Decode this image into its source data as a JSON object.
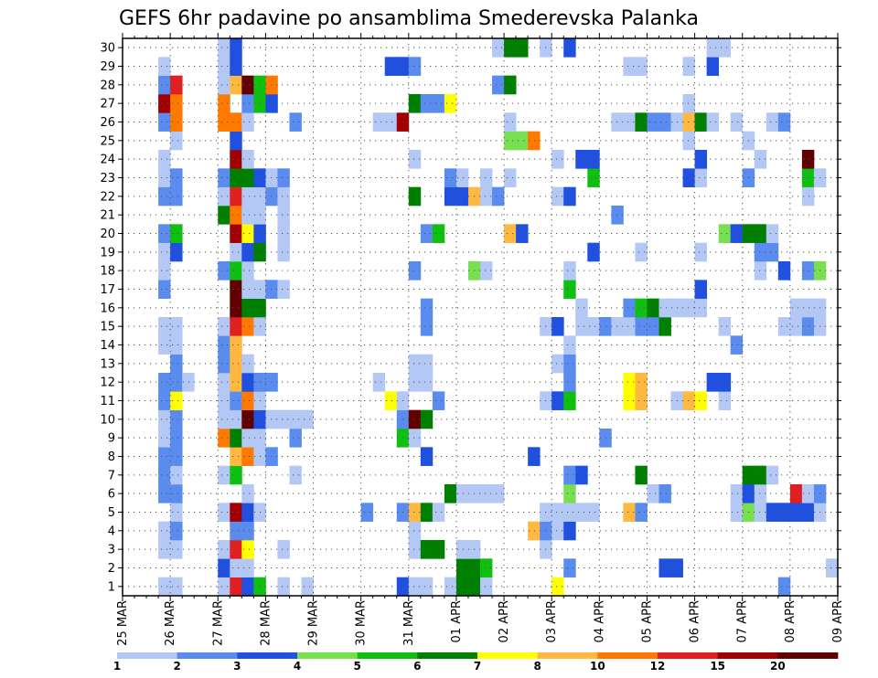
{
  "chart_data": {
    "type": "heatmap",
    "title": "GEFS 6hr padavine po ansamblima Smederevska Palanka",
    "x_axis": {
      "kind": "date",
      "start": "2025-03-25T00:00",
      "end": "2025-04-09T00:00",
      "step_hours": 6,
      "tick_labels": [
        "25 MAR",
        "26 MAR",
        "27 MAR",
        "28 MAR",
        "29 MAR",
        "30 MAR",
        "31 MAR",
        "01 APR",
        "02 APR",
        "03 APR",
        "04 APR",
        "05 APR",
        "06 APR",
        "07 APR",
        "08 APR",
        "09 APR"
      ]
    },
    "y_axis": {
      "label": "",
      "range": [
        1,
        30
      ],
      "tick_labels": [
        "1",
        "2",
        "3",
        "4",
        "5",
        "6",
        "7",
        "8",
        "9",
        "10",
        "11",
        "12",
        "13",
        "14",
        "15",
        "16",
        "17",
        "18",
        "19",
        "20",
        "21",
        "22",
        "23",
        "24",
        "25",
        "26",
        "27",
        "28",
        "29",
        "30"
      ]
    },
    "grid": true,
    "legend": {
      "placement": "bottom",
      "boundaries": [
        1,
        2,
        3,
        4,
        5,
        6,
        7,
        8,
        10,
        12,
        15,
        20
      ],
      "labels": [
        "1",
        "2",
        "3",
        "4",
        "5",
        "6",
        "7",
        "8",
        "10",
        "12",
        "15",
        "20"
      ],
      "colors": [
        "#b4c8f5",
        "#5a8cf0",
        "#2050e0",
        "#78e050",
        "#10c010",
        "#008000",
        "#ffff00",
        "#ffb840",
        "#ff7800",
        "#e02020",
        "#a00000",
        "#600000"
      ]
    },
    "cells": [
      {
        "time": "2025-03-25T18:00",
        "members": [
          1,
          3,
          4,
          6,
          7,
          8,
          9,
          10,
          11,
          12,
          14,
          15,
          17,
          18,
          19,
          20,
          22,
          23,
          24,
          26,
          27,
          28,
          29
        ],
        "classes": [
          0,
          0,
          0,
          1,
          1,
          1,
          0,
          0,
          1,
          1,
          0,
          0,
          1,
          0,
          0,
          1,
          1,
          0,
          0,
          1,
          10,
          1,
          0
        ]
      },
      {
        "time": "2025-03-26T00:00",
        "members": [
          1,
          3,
          4,
          5,
          6,
          7,
          8,
          9,
          10,
          11,
          12,
          13,
          14,
          15,
          19,
          20,
          22,
          23,
          25,
          26,
          27,
          28
        ],
        "classes": [
          0,
          0,
          1,
          0,
          1,
          0,
          1,
          1,
          1,
          6,
          1,
          1,
          0,
          0,
          2,
          4,
          1,
          1,
          0,
          8,
          8,
          9
        ]
      },
      {
        "time": "2025-03-26T06:00",
        "members": [
          12
        ],
        "classes": [
          0
        ]
      },
      {
        "time": "2025-03-27T00:00",
        "members": [
          1,
          2,
          3,
          5,
          7,
          9,
          10,
          11,
          12,
          13,
          14,
          15,
          18,
          21,
          22,
          23,
          26,
          27,
          28,
          29,
          30
        ],
        "classes": [
          0,
          2,
          0,
          0,
          0,
          8,
          0,
          0,
          0,
          1,
          1,
          0,
          1,
          5,
          0,
          1,
          8,
          8,
          0,
          0,
          0
        ]
      },
      {
        "time": "2025-03-27T06:00",
        "members": [
          1,
          2,
          3,
          4,
          5,
          7,
          8,
          9,
          10,
          11,
          12,
          13,
          14,
          15,
          16,
          17,
          18,
          19,
          20,
          21,
          22,
          23,
          24,
          25,
          26,
          28,
          29,
          30
        ],
        "classes": [
          9,
          0,
          9,
          1,
          10,
          4,
          7,
          5,
          0,
          1,
          7,
          7,
          7,
          9,
          11,
          11,
          4,
          0,
          10,
          8,
          9,
          5,
          10,
          2,
          8,
          7,
          2,
          2
        ]
      },
      {
        "time": "2025-03-27T12:00",
        "members": [
          1,
          2,
          3,
          4,
          5,
          6,
          8,
          9,
          10,
          11,
          12,
          13,
          15,
          16,
          17,
          18,
          19,
          20,
          21,
          22,
          23,
          24,
          26,
          27,
          28
        ],
        "classes": [
          2,
          0,
          6,
          1,
          2,
          0,
          8,
          0,
          11,
          8,
          2,
          0,
          8,
          5,
          0,
          0,
          2,
          6,
          0,
          0,
          5,
          0,
          0,
          1,
          11
        ]
      },
      {
        "time": "2025-03-27T18:00",
        "members": [
          1,
          5,
          8,
          9,
          10,
          11,
          12,
          15,
          16,
          17,
          19,
          20,
          21,
          22,
          23,
          27,
          28
        ],
        "classes": [
          4,
          0,
          0,
          0,
          2,
          0,
          1,
          0,
          5,
          0,
          5,
          2,
          0,
          0,
          2,
          4,
          4
        ]
      },
      {
        "time": "2025-03-28T00:00",
        "members": [
          8,
          10,
          12,
          17,
          22,
          23,
          27,
          28
        ],
        "classes": [
          1,
          0,
          1,
          1,
          1,
          0,
          2,
          8
        ]
      },
      {
        "time": "2025-03-28T06:00",
        "members": [
          1,
          3,
          10,
          17,
          19,
          20,
          21,
          22,
          23
        ],
        "classes": [
          0,
          0,
          0,
          0,
          0,
          0,
          0,
          0,
          1
        ]
      },
      {
        "time": "2025-03-28T12:00",
        "members": [
          7,
          9,
          10,
          26
        ],
        "classes": [
          0,
          1,
          0,
          1
        ]
      },
      {
        "time": "2025-03-28T18:00",
        "members": [
          1,
          10
        ],
        "classes": [
          0,
          0
        ]
      },
      {
        "time": "2025-03-30T00:00",
        "members": [
          5
        ],
        "classes": [
          1
        ]
      },
      {
        "time": "2025-03-30T06:00",
        "members": [
          12,
          26
        ],
        "classes": [
          0,
          0
        ]
      },
      {
        "time": "2025-03-30T12:00",
        "members": [
          11,
          26,
          29
        ],
        "classes": [
          6,
          0,
          2
        ]
      },
      {
        "time": "2025-03-30T18:00",
        "members": [
          1,
          5,
          9,
          10,
          11,
          26,
          29
        ],
        "classes": [
          2,
          1,
          4,
          1,
          0,
          10,
          2
        ]
      },
      {
        "time": "2025-03-31T00:00",
        "members": [
          1,
          3,
          4,
          5,
          9,
          10,
          12,
          13,
          18,
          22,
          24,
          27,
          29
        ],
        "classes": [
          0,
          0,
          0,
          7,
          0,
          11,
          0,
          0,
          1,
          5,
          0,
          5,
          1
        ]
      },
      {
        "time": "2025-03-31T06:00",
        "members": [
          1,
          3,
          5,
          8,
          10,
          12,
          13,
          15,
          16,
          20,
          27
        ],
        "classes": [
          0,
          5,
          5,
          2,
          5,
          0,
          0,
          1,
          1,
          1,
          1
        ]
      },
      {
        "time": "2025-03-31T12:00",
        "members": [
          0,
          3,
          5,
          11,
          20,
          27
        ],
        "classes": [
          1,
          5,
          0,
          1,
          4,
          1
        ]
      },
      {
        "time": "2025-03-31T18:00",
        "members": [
          1,
          6,
          22,
          23,
          27
        ],
        "classes": [
          0,
          5,
          2,
          1,
          6
        ]
      },
      {
        "time": "2025-04-01T00:00",
        "members": [
          1,
          2,
          3,
          6,
          22,
          23
        ],
        "classes": [
          5,
          5,
          0,
          0,
          2,
          0
        ]
      },
      {
        "time": "2025-04-01T06:00",
        "members": [
          1,
          2,
          3,
          6,
          18,
          22
        ],
        "classes": [
          5,
          5,
          0,
          0,
          3,
          7
        ]
      },
      {
        "time": "2025-04-01T12:00",
        "members": [
          1,
          2,
          6,
          18,
          22,
          23
        ],
        "classes": [
          0,
          4,
          0,
          0,
          0,
          0
        ]
      },
      {
        "time": "2025-04-01T18:00",
        "members": [
          6,
          22,
          28,
          30
        ],
        "classes": [
          0,
          1,
          1,
          0
        ]
      },
      {
        "time": "2025-04-02T00:00",
        "members": [
          20,
          23,
          25,
          26,
          28,
          30
        ],
        "classes": [
          7,
          0,
          3,
          0,
          5,
          5
        ]
      },
      {
        "time": "2025-04-02T06:00",
        "members": [
          20,
          25,
          30
        ],
        "classes": [
          2,
          3,
          5
        ]
      },
      {
        "time": "2025-04-02T12:00",
        "members": [
          4,
          8,
          25
        ],
        "classes": [
          7,
          2,
          8
        ]
      },
      {
        "time": "2025-04-02T18:00",
        "members": [
          3,
          4,
          5,
          11,
          15,
          30
        ],
        "classes": [
          0,
          1,
          0,
          0,
          0,
          0
        ]
      },
      {
        "time": "2025-04-03T00:00",
        "members": [
          0,
          1,
          4,
          5,
          11,
          13,
          15,
          22,
          24
        ],
        "classes": [
          0,
          6,
          0,
          0,
          2,
          0,
          2,
          0,
          0
        ]
      },
      {
        "time": "2025-04-03T06:00",
        "members": [
          0,
          2,
          4,
          5,
          6,
          7,
          11,
          12,
          13,
          14,
          17,
          18,
          22,
          30
        ],
        "classes": [
          0,
          1,
          2,
          0,
          3,
          1,
          4,
          1,
          1,
          0,
          4,
          0,
          2,
          2
        ]
      },
      {
        "time": "2025-04-03T12:00",
        "members": [
          5,
          7,
          15,
          16,
          24
        ],
        "classes": [
          0,
          2,
          0,
          0,
          2
        ]
      },
      {
        "time": "2025-04-03T18:00",
        "members": [
          0,
          5,
          15,
          19,
          23,
          24
        ],
        "classes": [
          0,
          0,
          0,
          2,
          4,
          2
        ]
      },
      {
        "time": "2025-04-04T00:00",
        "members": [
          0,
          9,
          15
        ],
        "classes": [
          0,
          1,
          1
        ]
      },
      {
        "time": "2025-04-04T06:00",
        "members": [
          0,
          15,
          21,
          26
        ],
        "classes": [
          0,
          0,
          1,
          0
        ]
      },
      {
        "time": "2025-04-04T12:00",
        "members": [
          5,
          11,
          12,
          15,
          16,
          26,
          29
        ],
        "classes": [
          7,
          6,
          6,
          0,
          1,
          0,
          0
        ]
      },
      {
        "time": "2025-04-04T18:00",
        "members": [
          5,
          7,
          11,
          12,
          15,
          16,
          19,
          26,
          29
        ],
        "classes": [
          1,
          5,
          7,
          7,
          1,
          4,
          0,
          5,
          0
        ]
      },
      {
        "time": "2025-04-05T00:00",
        "members": [
          6,
          15,
          16,
          26
        ],
        "classes": [
          0,
          1,
          5,
          1
        ]
      },
      {
        "time": "2025-04-05T06:00",
        "members": [
          2,
          6,
          15,
          16,
          26
        ],
        "classes": [
          2,
          1,
          5,
          0,
          1
        ]
      },
      {
        "time": "2025-04-05T12:00",
        "members": [
          2,
          11,
          16,
          26
        ],
        "classes": [
          2,
          0,
          0,
          0
        ]
      },
      {
        "time": "2025-04-05T18:00",
        "members": [
          11,
          16,
          23,
          25,
          26,
          27,
          29
        ],
        "classes": [
          7,
          0,
          2,
          0,
          7,
          0,
          0
        ]
      },
      {
        "time": "2025-04-06T00:00",
        "members": [
          11,
          16,
          17,
          19,
          23,
          24,
          26
        ],
        "classes": [
          6,
          0,
          2,
          0,
          0,
          2,
          5
        ]
      },
      {
        "time": "2025-04-06T06:00",
        "members": [
          12,
          26,
          29,
          30
        ],
        "classes": [
          2,
          0,
          2,
          0
        ]
      },
      {
        "time": "2025-04-06T12:00",
        "members": [
          11,
          12,
          15,
          20,
          30
        ],
        "classes": [
          0,
          2,
          0,
          3,
          0
        ]
      },
      {
        "time": "2025-04-06T18:00",
        "members": [
          5,
          6,
          14,
          20,
          26
        ],
        "classes": [
          0,
          0,
          1,
          2,
          0
        ]
      },
      {
        "time": "2025-04-07T00:00",
        "members": [
          5,
          6,
          7,
          20,
          23,
          25
        ],
        "classes": [
          3,
          2,
          5,
          5,
          1,
          0
        ]
      },
      {
        "time": "2025-04-07T06:00",
        "members": [
          5,
          6,
          7,
          18,
          19,
          20,
          24
        ],
        "classes": [
          0,
          0,
          5,
          0,
          1,
          5,
          0
        ]
      },
      {
        "time": "2025-04-07T12:00",
        "members": [
          5,
          7,
          19,
          20,
          26
        ],
        "classes": [
          2,
          0,
          1,
          0,
          0
        ]
      },
      {
        "time": "2025-04-07T18:00",
        "members": [
          1,
          5,
          15,
          18,
          26
        ],
        "classes": [
          1,
          2,
          0,
          2,
          1
        ]
      },
      {
        "time": "2025-04-08T00:00",
        "members": [
          5,
          6,
          15,
          16
        ],
        "classes": [
          2,
          9,
          0,
          0
        ]
      },
      {
        "time": "2025-04-08T06:00",
        "members": [
          5,
          6,
          15,
          16,
          18,
          22,
          23,
          24
        ],
        "classes": [
          2,
          0,
          1,
          0,
          1,
          0,
          4,
          11
        ]
      },
      {
        "time": "2025-04-08T12:00",
        "members": [
          5,
          6,
          15,
          16,
          18,
          23
        ],
        "classes": [
          0,
          1,
          0,
          0,
          3,
          0
        ]
      },
      {
        "time": "2025-04-08T18:00",
        "members": [
          2
        ],
        "classes": [
          0
        ]
      },
      {
        "time": "2025-04-09T00:00",
        "members": [
          2
        ],
        "classes": [
          0
        ]
      },
      {
        "time": "2025-04-09T06:00",
        "members": [
          10,
          12,
          19
        ],
        "classes": [
          8,
          0,
          0
        ]
      },
      {
        "time": "2025-04-09T12:00",
        "members": [
          9,
          12,
          15,
          19
        ],
        "classes": [
          0,
          3,
          2,
          0
        ]
      },
      {
        "time": "2025-04-09T18:00",
        "members": [
          9,
          10,
          12,
          19,
          28
        ],
        "classes": [
          1,
          0,
          5,
          1,
          0
        ]
      }
    ]
  }
}
